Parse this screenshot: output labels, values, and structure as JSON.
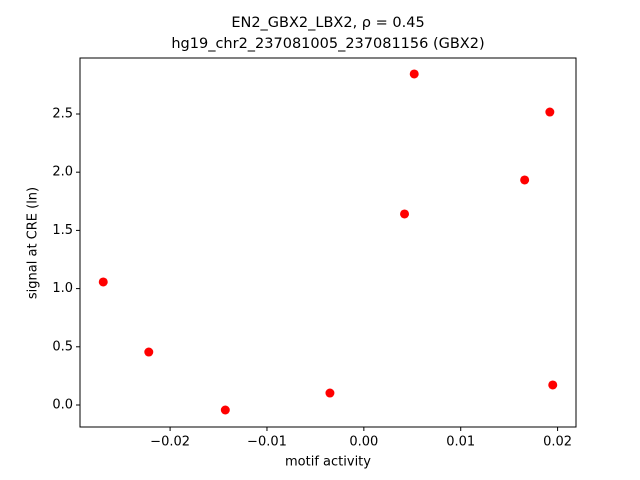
{
  "chart_data": {
    "type": "scatter",
    "title": "EN2_GBX2_LBX2, ρ = 0.45",
    "subtitle": "hg19_chr2_237081005_237081156 (GBX2)",
    "x_label": "motif activity",
    "y_label": "signal at CRE (ln)",
    "color": "#ff0000",
    "x": [
      -0.0269,
      -0.0222,
      -0.0143,
      -0.0035,
      0.0042,
      0.0052,
      0.0166,
      0.0192,
      0.0195
    ],
    "y": [
      1.057,
      0.455,
      -0.043,
      0.103,
      1.641,
      2.844,
      1.933,
      2.517,
      0.172
    ],
    "xlim": [
      -0.0293,
      0.0219
    ],
    "ylim": [
      -0.189,
      2.981
    ],
    "xticks": [
      {
        "value": -0.02,
        "label": "−0.02"
      },
      {
        "value": -0.01,
        "label": "−0.01"
      },
      {
        "value": 0,
        "label": "0.00"
      },
      0.01,
      0.02
    ],
    "yticks": [
      {
        "value": 0,
        "label": "0.0"
      },
      0.5,
      {
        "value": 1,
        "label": "1.0"
      },
      1.5,
      {
        "value": 2,
        "label": "2.0"
      },
      2.5
    ]
  }
}
